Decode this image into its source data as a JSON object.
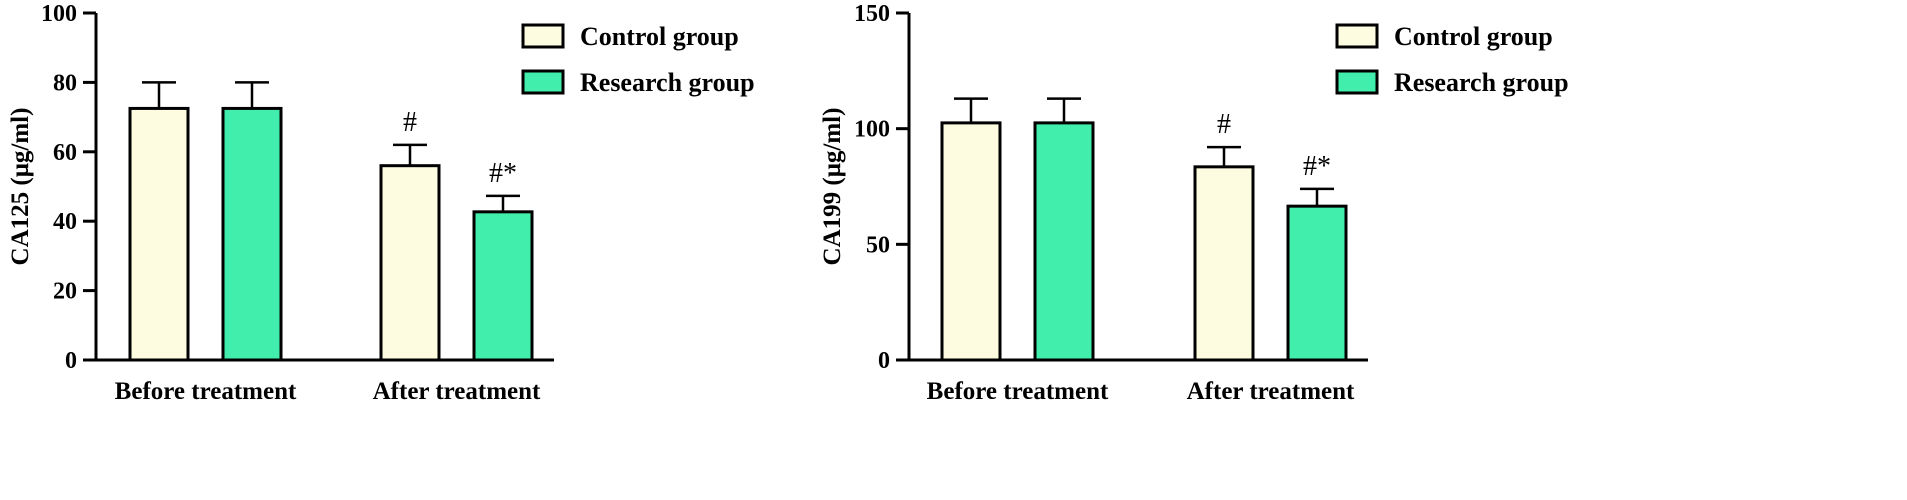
{
  "chart_data": [
    {
      "type": "bar",
      "ylabel": "CA125 (μg/ml)",
      "xlabel": "",
      "categories": [
        "Before treatment",
        "After treatment"
      ],
      "ylim": [
        0,
        100
      ],
      "yticks": [
        0,
        20,
        40,
        60,
        80,
        100
      ],
      "series": [
        {
          "name": "Control group",
          "values": [
            72.5,
            56.0
          ],
          "errors": [
            7.5,
            6.0
          ],
          "annotations": [
            "",
            "#"
          ]
        },
        {
          "name": "Research group",
          "values": [
            72.5,
            42.7
          ],
          "errors": [
            7.5,
            4.6
          ],
          "annotations": [
            "",
            "#*"
          ]
        }
      ],
      "legend": "top-right",
      "grid": false
    },
    {
      "type": "bar",
      "ylabel": "CA199 (μg/ml)",
      "xlabel": "",
      "categories": [
        "Before treatment",
        "After treatment"
      ],
      "ylim": [
        0,
        150
      ],
      "yticks": [
        0,
        50,
        100,
        150
      ],
      "series": [
        {
          "name": "Control group",
          "values": [
            102.5,
            83.5
          ],
          "errors": [
            10.5,
            8.5
          ],
          "annotations": [
            "",
            "#"
          ]
        },
        {
          "name": "Research group",
          "values": [
            102.5,
            66.5
          ],
          "errors": [
            10.5,
            7.5
          ],
          "annotations": [
            "",
            "#*"
          ]
        }
      ],
      "legend": "top-right",
      "grid": false
    }
  ],
  "colors": {
    "control": "#fdfce0",
    "research": "#42eeac",
    "stroke": "#000000"
  }
}
